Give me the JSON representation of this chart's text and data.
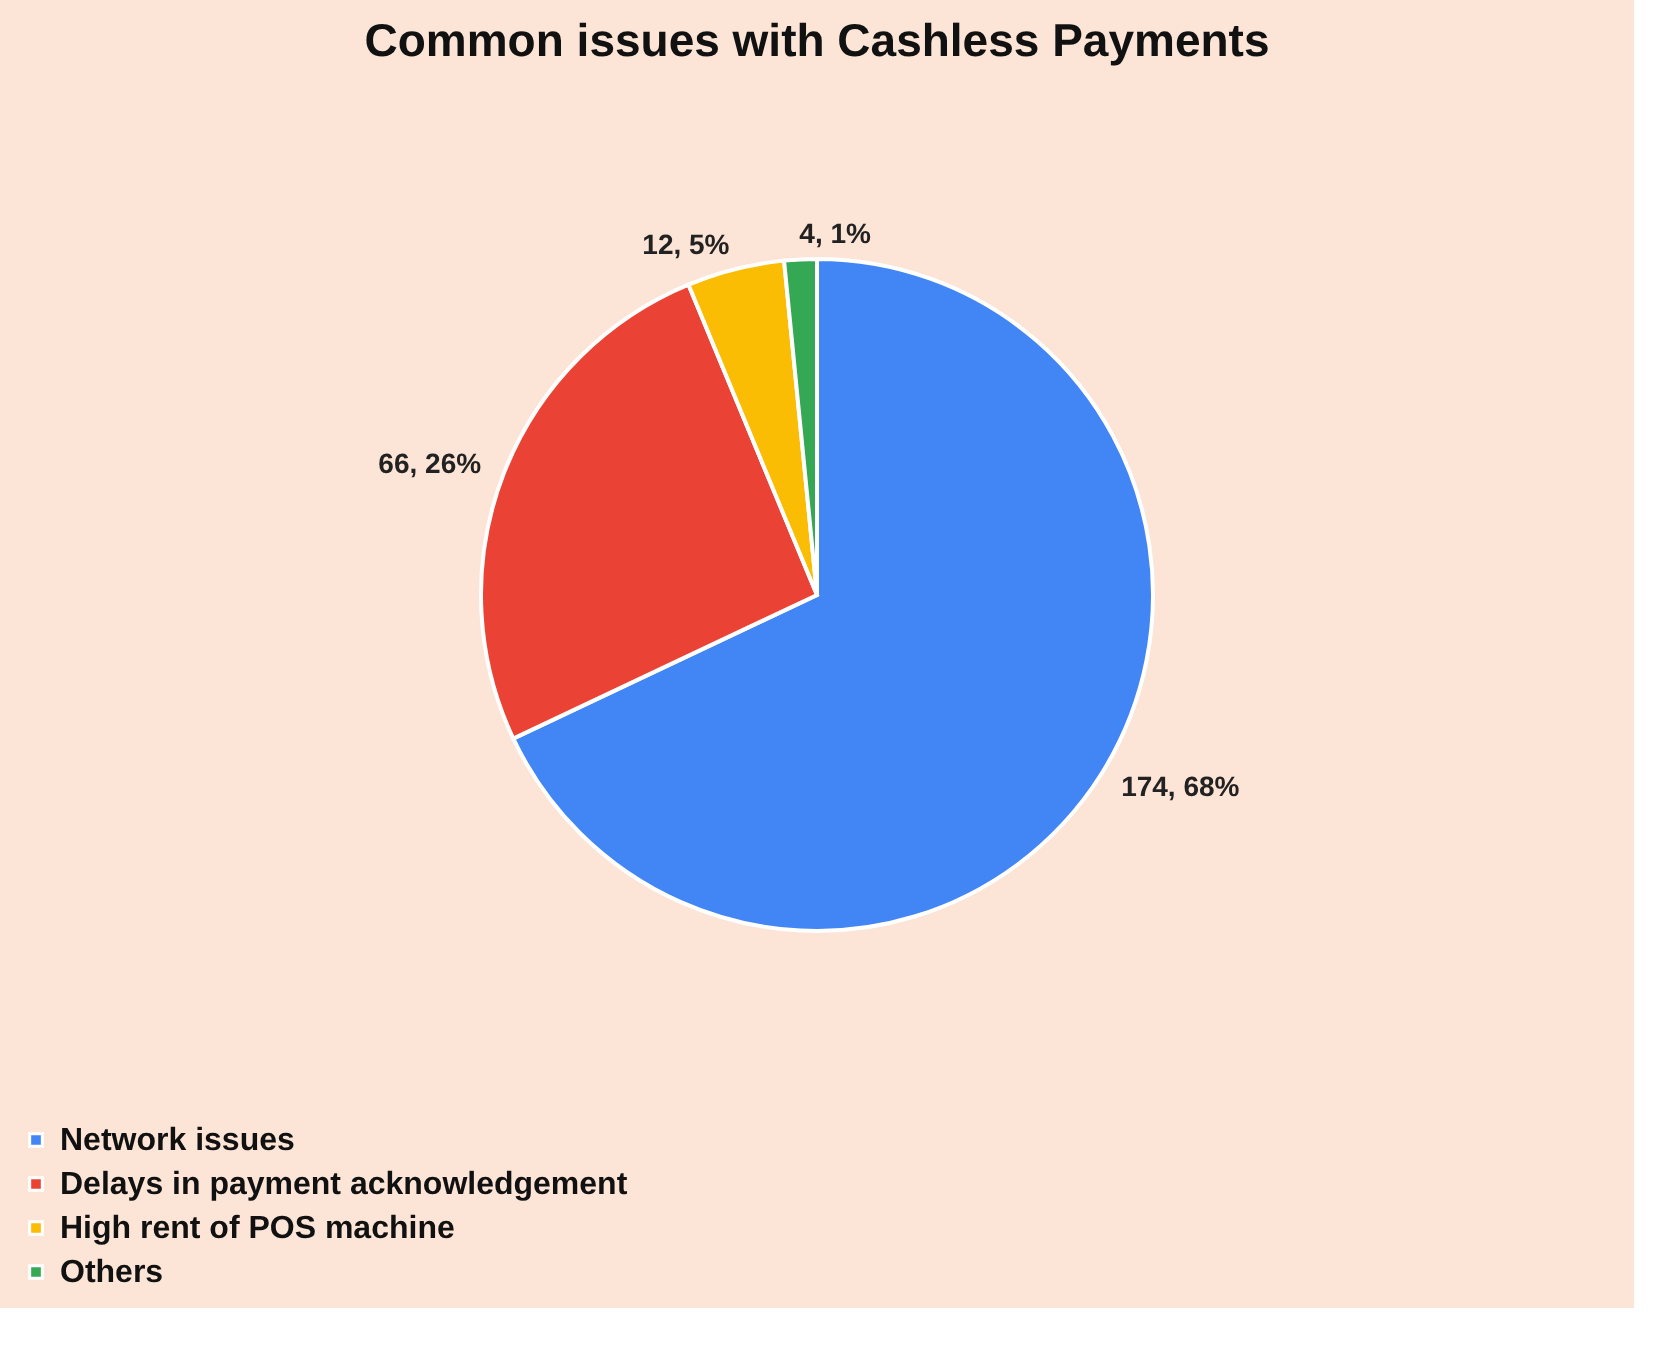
{
  "chart_data": {
    "type": "pie",
    "title": "Common issues with Cashless Payments",
    "categories": [
      "Network issues",
      "Delays in payment acknowledgement",
      "High rent of POS machine",
      "Others"
    ],
    "values": [
      174,
      66,
      12,
      4
    ],
    "colors": [
      "#4285f4",
      "#ea4335",
      "#fbbc04",
      "#34a853"
    ],
    "value_labels": [
      "174, 68%",
      "66, 26%",
      "12, 5%",
      "4, 1%"
    ],
    "legend": "bottom"
  }
}
